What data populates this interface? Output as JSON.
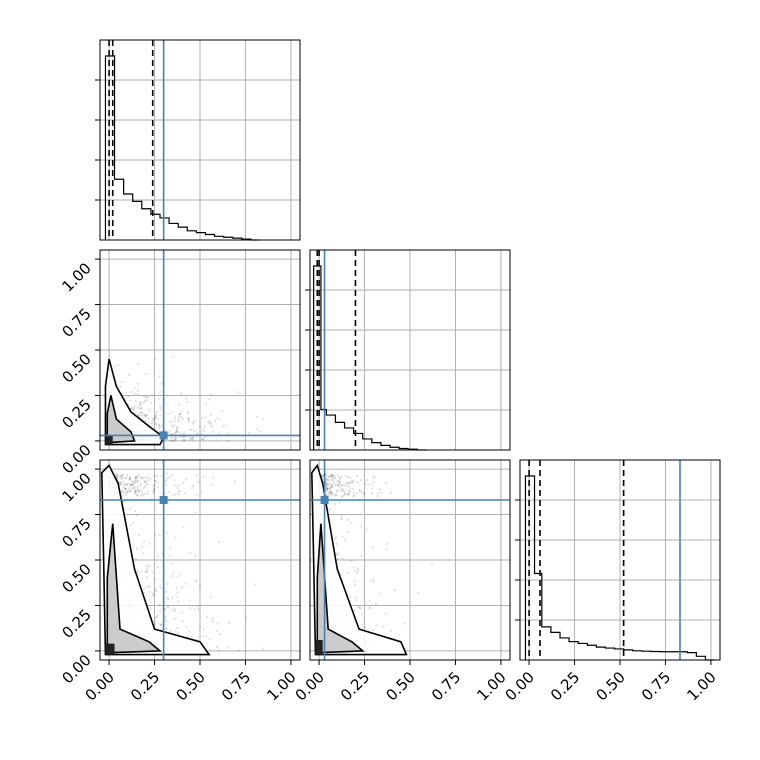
{
  "chart_data": {
    "type": "corner",
    "parameters": [
      "",
      "",
      ""
    ],
    "ticks": [
      0.0,
      0.25,
      0.5,
      0.75,
      1.0
    ],
    "tick_labels": [
      "0.00",
      "0.25",
      "0.50",
      "0.75",
      "1.00"
    ],
    "axis_range": [
      -0.05,
      1.05
    ],
    "grid": true,
    "colors": {
      "truth": "#4682b4",
      "contours": "#000000",
      "samples": "#000000"
    },
    "truths": [
      0.3,
      0.03,
      0.83
    ],
    "quantiles": [
      [
        0.0,
        0.02,
        0.24
      ],
      [
        -0.01,
        0.0,
        0.2
      ],
      [
        0.0,
        0.06,
        0.52
      ]
    ],
    "histograms": [
      {
        "bin_edges": [
          -0.02,
          0.03,
          0.08,
          0.13,
          0.18,
          0.23,
          0.28,
          0.33,
          0.38,
          0.43,
          0.48,
          0.53,
          0.58,
          0.63,
          0.68,
          0.73,
          0.78,
          0.83
        ],
        "heights": [
          1.0,
          0.33,
          0.25,
          0.21,
          0.17,
          0.14,
          0.12,
          0.09,
          0.07,
          0.05,
          0.04,
          0.03,
          0.02,
          0.015,
          0.01,
          0.005,
          0.0
        ]
      },
      {
        "bin_edges": [
          -0.03,
          -0.01,
          0.01,
          0.04,
          0.09,
          0.14,
          0.19,
          0.24,
          0.29,
          0.34,
          0.39,
          0.44,
          0.49,
          0.54,
          0.59
        ],
        "heights": [
          1.0,
          1.0,
          0.22,
          0.19,
          0.15,
          0.12,
          0.09,
          0.06,
          0.04,
          0.025,
          0.015,
          0.008,
          0.004,
          0.0
        ]
      },
      {
        "bin_edges": [
          -0.02,
          0.03,
          0.07,
          0.12,
          0.17,
          0.22,
          0.27,
          0.32,
          0.37,
          0.42,
          0.47,
          0.52,
          0.57,
          0.62,
          0.67,
          0.72,
          0.77,
          0.82,
          0.87,
          0.92,
          0.97,
          1.02
        ],
        "heights": [
          1.0,
          0.47,
          0.18,
          0.15,
          0.12,
          0.1,
          0.09,
          0.08,
          0.07,
          0.065,
          0.06,
          0.055,
          0.05,
          0.048,
          0.046,
          0.045,
          0.045,
          0.045,
          0.04,
          0.02,
          0.0
        ]
      }
    ],
    "pairs": [
      {
        "row": 1,
        "col": 0
      },
      {
        "row": 2,
        "col": 0
      },
      {
        "row": 2,
        "col": 1
      }
    ]
  }
}
